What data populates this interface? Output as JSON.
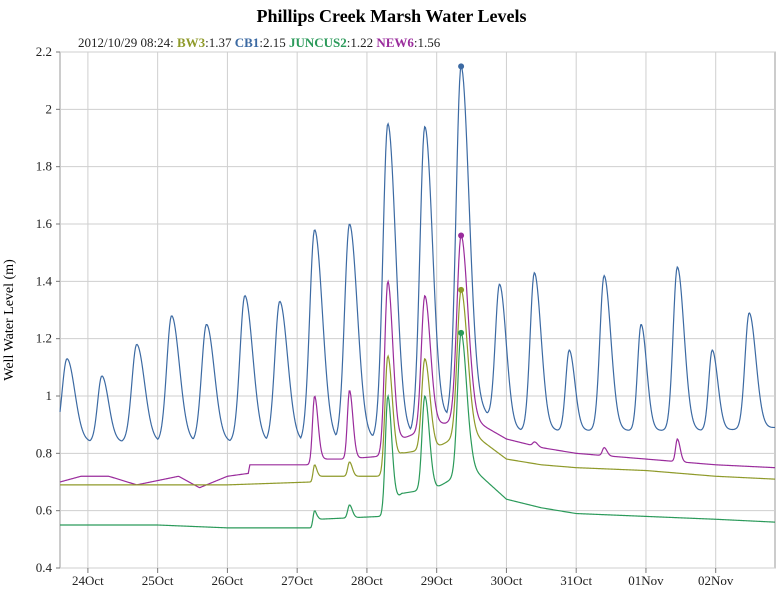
{
  "chart_data": {
    "type": "line",
    "title": "Phillips Creek Marsh Water Levels",
    "ylabel": "Well Water Level (m)",
    "xlabel": "",
    "ylim": [
      0.4,
      2.2
    ],
    "yticks": [
      0.4,
      0.6,
      0.8,
      1,
      1.2,
      1.4,
      1.6,
      1.8,
      2,
      2.2
    ],
    "xlim": [
      23.6,
      33.85
    ],
    "xticks": [
      {
        "x": 24,
        "label": "24Oct"
      },
      {
        "x": 25,
        "label": "25Oct"
      },
      {
        "x": 26,
        "label": "26Oct"
      },
      {
        "x": 27,
        "label": "27Oct"
      },
      {
        "x": 28,
        "label": "28Oct"
      },
      {
        "x": 29,
        "label": "29Oct"
      },
      {
        "x": 30,
        "label": "30Oct"
      },
      {
        "x": 31,
        "label": "31Oct"
      },
      {
        "x": 32,
        "label": "01Nov"
      },
      {
        "x": 33,
        "label": "02Nov"
      }
    ],
    "grid": true,
    "readout": {
      "timestamp": "2012/10/29 08:24:",
      "x": 29.35,
      "entries": [
        {
          "name": "BW3",
          "value": "1.37"
        },
        {
          "name": "CB1",
          "value": "2.15"
        },
        {
          "name": "JUNCUS2",
          "value": "1.22"
        },
        {
          "name": "NEW6",
          "value": "1.56"
        }
      ]
    },
    "series": [
      {
        "name": "CB1",
        "color": "#3c6aa3",
        "baseline": [
          [
            23.6,
            0.84
          ],
          [
            27.0,
            0.84
          ],
          [
            28.0,
            0.85
          ],
          [
            29.0,
            0.88
          ],
          [
            29.4,
            1.0
          ],
          [
            30.0,
            0.88
          ],
          [
            31.0,
            0.88
          ],
          [
            32.0,
            0.88
          ],
          [
            33.0,
            0.88
          ],
          [
            33.85,
            0.89
          ]
        ],
        "peaks": [
          [
            23.7,
            1.13,
            0.07
          ],
          [
            24.2,
            1.07,
            0.06
          ],
          [
            24.7,
            1.18,
            0.07
          ],
          [
            25.2,
            1.28,
            0.07
          ],
          [
            25.7,
            1.25,
            0.07
          ],
          [
            26.25,
            1.35,
            0.07
          ],
          [
            26.75,
            1.33,
            0.07
          ],
          [
            27.25,
            1.58,
            0.07
          ],
          [
            27.75,
            1.6,
            0.07
          ],
          [
            28.3,
            1.95,
            0.07
          ],
          [
            28.83,
            1.94,
            0.07
          ],
          [
            29.35,
            2.15,
            0.07
          ],
          [
            29.9,
            1.39,
            0.06
          ],
          [
            30.4,
            1.43,
            0.06
          ],
          [
            30.9,
            1.16,
            0.05
          ],
          [
            31.4,
            1.42,
            0.06
          ],
          [
            31.93,
            1.25,
            0.05
          ],
          [
            32.45,
            1.45,
            0.06
          ],
          [
            32.95,
            1.16,
            0.05
          ],
          [
            33.48,
            1.29,
            0.06
          ]
        ]
      },
      {
        "name": "NEW6",
        "color": "#9a2c9c",
        "baseline": [
          [
            23.6,
            0.7
          ],
          [
            23.9,
            0.72
          ],
          [
            24.3,
            0.72
          ],
          [
            24.7,
            0.69
          ],
          [
            25.3,
            0.72
          ],
          [
            25.6,
            0.68
          ],
          [
            26.0,
            0.72
          ],
          [
            26.3,
            0.73
          ],
          [
            26.32,
            0.76
          ],
          [
            27.2,
            0.76
          ],
          [
            27.3,
            0.78
          ],
          [
            27.7,
            0.78
          ],
          [
            28.2,
            0.79
          ],
          [
            28.5,
            0.85
          ],
          [
            29.0,
            0.9
          ],
          [
            29.5,
            0.92
          ],
          [
            30.0,
            0.85
          ],
          [
            30.5,
            0.82
          ],
          [
            31.0,
            0.8
          ],
          [
            31.5,
            0.79
          ],
          [
            32.0,
            0.78
          ],
          [
            32.5,
            0.77
          ],
          [
            33.0,
            0.76
          ],
          [
            33.85,
            0.75
          ]
        ],
        "peaks": [
          [
            27.25,
            1.0,
            0.03
          ],
          [
            27.75,
            1.02,
            0.03
          ],
          [
            28.3,
            1.4,
            0.045
          ],
          [
            28.83,
            1.35,
            0.05
          ],
          [
            29.35,
            1.56,
            0.06
          ],
          [
            30.4,
            0.84,
            0.025
          ],
          [
            31.4,
            0.82,
            0.025
          ],
          [
            32.45,
            0.85,
            0.025
          ]
        ]
      },
      {
        "name": "BW3",
        "color": "#8f9a2a",
        "baseline": [
          [
            23.6,
            0.69
          ],
          [
            26.0,
            0.69
          ],
          [
            27.2,
            0.7
          ],
          [
            27.3,
            0.72
          ],
          [
            28.2,
            0.72
          ],
          [
            28.5,
            0.8
          ],
          [
            29.0,
            0.82
          ],
          [
            29.45,
            0.88
          ],
          [
            30.0,
            0.78
          ],
          [
            30.5,
            0.76
          ],
          [
            31.0,
            0.75
          ],
          [
            32.0,
            0.74
          ],
          [
            33.0,
            0.72
          ],
          [
            33.85,
            0.71
          ]
        ],
        "peaks": [
          [
            27.25,
            0.76,
            0.02
          ],
          [
            27.75,
            0.77,
            0.025
          ],
          [
            28.3,
            1.14,
            0.04
          ],
          [
            28.83,
            1.13,
            0.045
          ],
          [
            29.35,
            1.37,
            0.055
          ]
        ]
      },
      {
        "name": "JUNCUS2",
        "color": "#2b9a5a",
        "baseline": [
          [
            23.6,
            0.55
          ],
          [
            25.0,
            0.55
          ],
          [
            26.0,
            0.54
          ],
          [
            27.2,
            0.54
          ],
          [
            27.3,
            0.57
          ],
          [
            28.2,
            0.58
          ],
          [
            28.5,
            0.66
          ],
          [
            29.0,
            0.68
          ],
          [
            29.5,
            0.75
          ],
          [
            30.0,
            0.64
          ],
          [
            30.5,
            0.61
          ],
          [
            31.0,
            0.59
          ],
          [
            32.0,
            0.58
          ],
          [
            33.0,
            0.57
          ],
          [
            33.85,
            0.56
          ]
        ],
        "peaks": [
          [
            27.25,
            0.6,
            0.02
          ],
          [
            27.75,
            0.62,
            0.025
          ],
          [
            28.3,
            1.0,
            0.035
          ],
          [
            28.83,
            1.0,
            0.04
          ],
          [
            29.35,
            1.22,
            0.05
          ]
        ]
      }
    ]
  }
}
